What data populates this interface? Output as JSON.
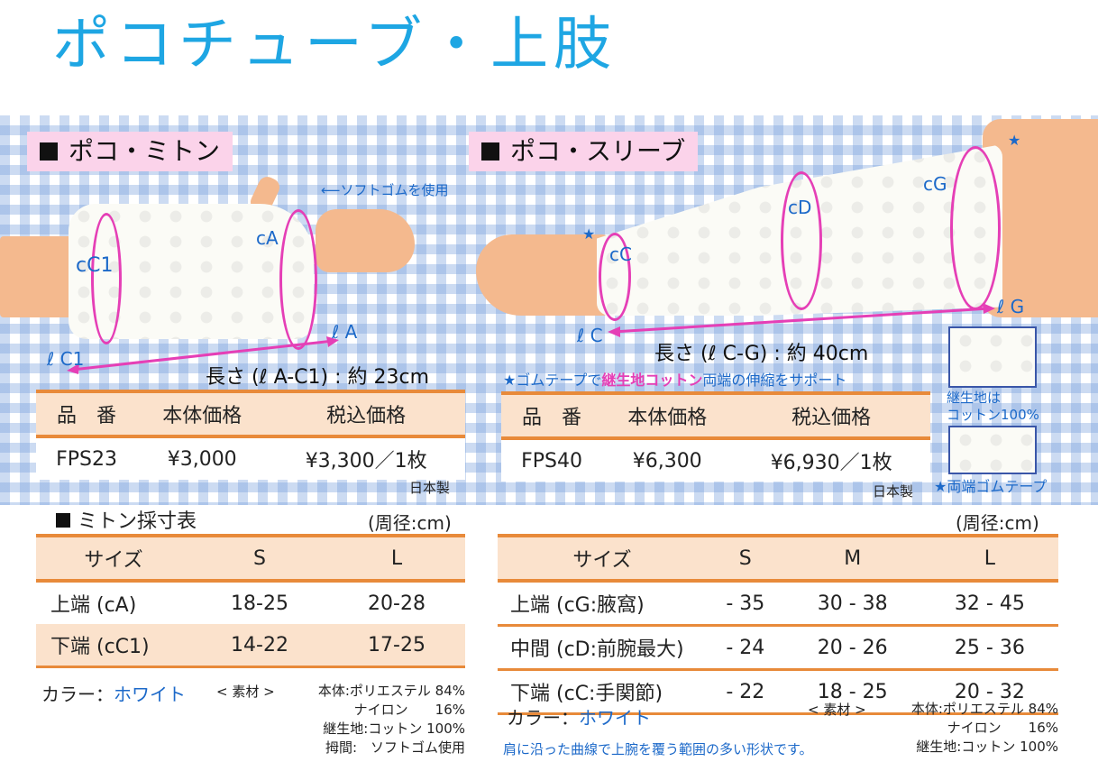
{
  "title": "ポコチューブ・上肢",
  "mitten": {
    "heading": "ポコ・ミトン",
    "callout": "ソフトゴムを使用",
    "labels": {
      "cA": "cA",
      "cC1": "cC1",
      "lA": "ℓ A",
      "lC1": "ℓ C1"
    },
    "length": "長さ (ℓ A-C1) : 約 23cm",
    "price_table": {
      "headers": [
        "品　番",
        "本体価格",
        "税込価格"
      ],
      "row": [
        "FPS23",
        "¥3,000",
        "¥3,300／1枚"
      ]
    },
    "made_in": "日本製",
    "size_title": "ミトン採寸表",
    "unit": "(周径:cm)",
    "size_table": {
      "headers": [
        "サイズ",
        "S",
        "L"
      ],
      "rows": [
        [
          "上端 (cA)",
          "18-25",
          "20-28"
        ],
        [
          "下端 (cC1)",
          "14-22",
          "17-25"
        ]
      ]
    },
    "color_label": "カラー：",
    "color_value": "ホワイト",
    "material_label": "< 素材 >",
    "materials": [
      "本体:ポリエステル 84%",
      "ナイロン　　16%",
      "継生地:コットン 100%",
      "拇間:　ソフトゴム使用"
    ]
  },
  "sleeve": {
    "heading": "ポコ・スリーブ",
    "labels": {
      "cC": "cC",
      "cD": "cD",
      "cG": "cG",
      "lC": "ℓ C",
      "lG": "ℓ G"
    },
    "length": "長さ (ℓ C-G) : 約 40cm",
    "note_prefix": "★ゴムテープで",
    "note_highlight": "継生地コットン",
    "note_suffix": "両端の伸縮をサポート",
    "side_note_1": "継生地は",
    "side_note_2": "コットン100%",
    "side_note_3": "★両端ゴムテープ",
    "price_table": {
      "headers": [
        "品　番",
        "本体価格",
        "税込価格"
      ],
      "row": [
        "FPS40",
        "¥6,300",
        "¥6,930／1枚"
      ]
    },
    "made_in": "日本製",
    "unit": "(周径:cm)",
    "size_table": {
      "headers": [
        "サイズ",
        "S",
        "M",
        "L"
      ],
      "rows": [
        [
          "上端 (cG:腋窩)",
          "- 35",
          "30 - 38",
          "32 - 45"
        ],
        [
          "中間 (cD:前腕最大)",
          "- 24",
          "20 - 26",
          "25 - 36"
        ],
        [
          "下端 (cC:手関節)",
          "- 22",
          "18 - 25",
          "20 - 32"
        ]
      ]
    },
    "color_label": "カラー：",
    "color_value": "ホワイト",
    "material_label": "< 素材 >",
    "materials": [
      "本体:ポリエステル 84%",
      "ナイロン　　16%",
      "継生地:コットン 100%"
    ],
    "footer_note": "肩に沿った曲線で上腕を覆う範囲の多い形状です。"
  },
  "colors": {
    "title": "#1ea6e3",
    "accent": "#e88a3a",
    "pink": "#e53fb6",
    "blue": "#1c69c9"
  }
}
